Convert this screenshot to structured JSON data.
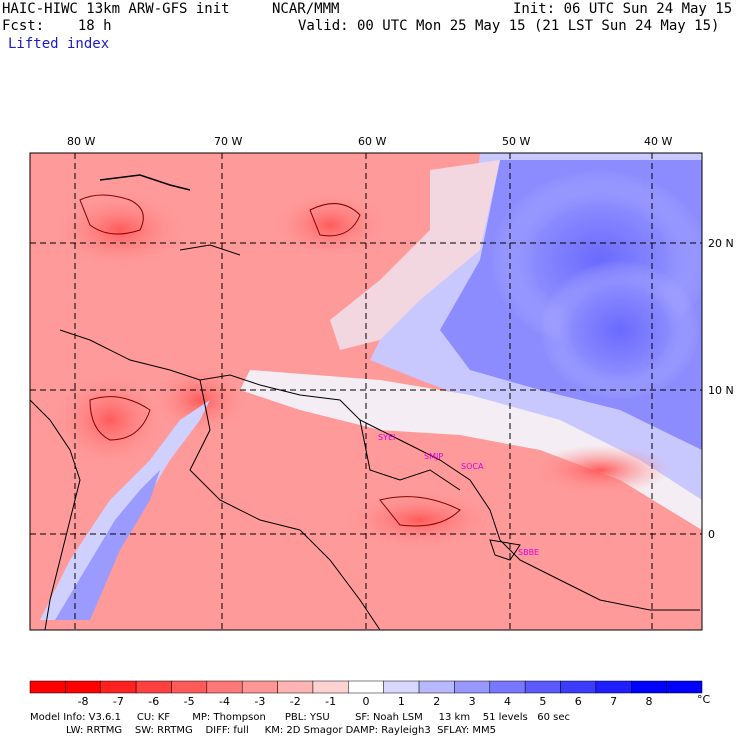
{
  "header": {
    "model": "HAIC-HIWC 13km ARW-GFS init",
    "org": "NCAR/MMM",
    "init": "Init: 06 UTC Sun 24 May 15",
    "fcst": "Fcst:    18 h",
    "valid": "Valid: 00 UTC Mon 25 May 15 (21 LST Sun 24 May 15)",
    "field": "Lifted index"
  },
  "map": {
    "lon_labels": [
      "80 W",
      "70 W",
      "60 W",
      "50 W",
      "40 W"
    ],
    "lat_labels": [
      "20 N",
      "10 N",
      "0"
    ],
    "stations": [
      "SYEI",
      "SMJP",
      "SOCA",
      "SBBE"
    ],
    "colors": {
      "negative": "#ff0000",
      "positive": "#0000ff",
      "neutral": "#ffffff",
      "boundary": "#000000",
      "station": "#e000e0"
    }
  },
  "colorbar": {
    "labels": [
      "-8",
      "-7",
      "-6",
      "-5",
      "-4",
      "-3",
      "-2",
      "-1",
      "0",
      "1",
      "2",
      "3",
      "4",
      "5",
      "6",
      "7",
      "8"
    ],
    "unit": "°C",
    "colors": [
      "#ff0000",
      "#ff2020",
      "#ff4040",
      "#ff5a5a",
      "#ff7878",
      "#ff9696",
      "#ffb4b4",
      "#ffd2d2",
      "#ffffff",
      "#d8d8ff",
      "#b8b8ff",
      "#9898ff",
      "#7878ff",
      "#5a5aff",
      "#3c3cff",
      "#1e1eff",
      "#0000ff"
    ]
  },
  "footer": {
    "line1": "Model Info: V3.6.1     CU: KF       MP: Thompson      PBL: YSU        SF: Noah LSM     13 km    51 levels   60 sec",
    "line2": "LW: RRTMG    SW: RRTMG    DIFF: full     KM: 2D Smagor DAMP: Rayleigh3  SFLAY: MM5"
  }
}
